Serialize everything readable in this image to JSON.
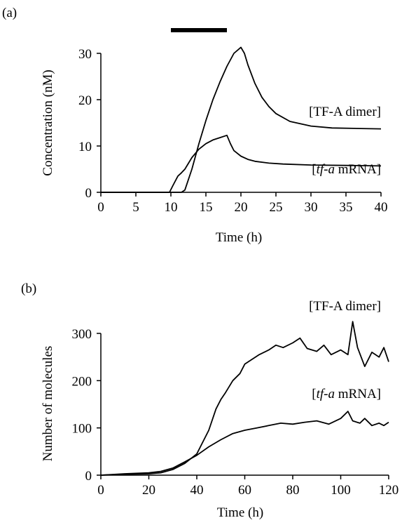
{
  "chart_data": [
    {
      "panel": "(a)",
      "type": "line",
      "xlabel": "Time (h)",
      "ylabel": "Concentration (nM)",
      "xlim": [
        0,
        40
      ],
      "ylim": [
        0,
        30
      ],
      "xticks": [
        "0",
        "5",
        "10",
        "15",
        "20",
        "25",
        "30",
        "35",
        "40"
      ],
      "yticks": [
        "0",
        "10",
        "20",
        "30"
      ],
      "bar": {
        "x": [
          10,
          18
        ]
      },
      "series": [
        {
          "name": "[TF-A dimer]",
          "x": [
            0,
            10,
            11.5,
            12,
            13,
            14,
            15,
            16,
            17,
            18,
            19,
            20,
            20.5,
            21,
            22,
            23,
            24,
            25,
            27,
            30,
            33,
            36,
            40
          ],
          "y": [
            0,
            0,
            0,
            0.5,
            5,
            10.5,
            15.5,
            20,
            23.8,
            27.2,
            30,
            31.3,
            30,
            27.5,
            23.5,
            20.5,
            18.5,
            17,
            15.3,
            14.3,
            13.9,
            13.8,
            13.7
          ]
        },
        {
          "name": "[tf-a mRNA]",
          "x": [
            0,
            9.8,
            10.3,
            11,
            11.5,
            12,
            13,
            14,
            15,
            16,
            17,
            18,
            18.5,
            19,
            20,
            21,
            22,
            24,
            26,
            30,
            35,
            40
          ],
          "y": [
            0,
            0,
            1.5,
            3.5,
            4.2,
            5,
            7.5,
            9.3,
            10.5,
            11.3,
            11.8,
            12.3,
            10.5,
            9,
            7.8,
            7.1,
            6.7,
            6.3,
            6.1,
            5.9,
            5.8,
            5.7
          ]
        }
      ]
    },
    {
      "panel": "(b)",
      "type": "line",
      "xlabel": "Time (h)",
      "ylabel": "Number of molecules",
      "xlim": [
        0,
        120
      ],
      "ylim": [
        0,
        300
      ],
      "xticks": [
        "0",
        "20",
        "40",
        "60",
        "80",
        "100",
        "120"
      ],
      "yticks": [
        "0",
        "100",
        "200",
        "300"
      ],
      "series": [
        {
          "name": "[TF-A dimer]",
          "x": [
            0,
            10,
            20,
            25,
            30,
            35,
            40,
            45,
            48,
            50,
            52,
            55,
            58,
            60,
            63,
            66,
            70,
            73,
            76,
            80,
            83,
            86,
            90,
            93,
            96,
            100,
            103,
            105,
            107,
            110,
            113,
            116,
            118,
            120
          ],
          "y": [
            0,
            2,
            3,
            5,
            12,
            25,
            45,
            95,
            140,
            160,
            175,
            200,
            215,
            235,
            245,
            255,
            265,
            275,
            270,
            280,
            290,
            268,
            262,
            275,
            255,
            265,
            255,
            325,
            270,
            230,
            260,
            250,
            270,
            240
          ]
        },
        {
          "name": "[tf-a mRNA]",
          "x": [
            0,
            10,
            20,
            25,
            30,
            35,
            40,
            45,
            50,
            55,
            60,
            65,
            70,
            75,
            80,
            85,
            90,
            95,
            100,
            103,
            105,
            108,
            110,
            113,
            116,
            118,
            120
          ],
          "y": [
            0,
            3,
            5,
            8,
            15,
            28,
            42,
            60,
            75,
            88,
            95,
            100,
            105,
            110,
            108,
            112,
            115,
            108,
            120,
            135,
            115,
            110,
            120,
            105,
            110,
            105,
            112
          ]
        }
      ]
    }
  ]
}
